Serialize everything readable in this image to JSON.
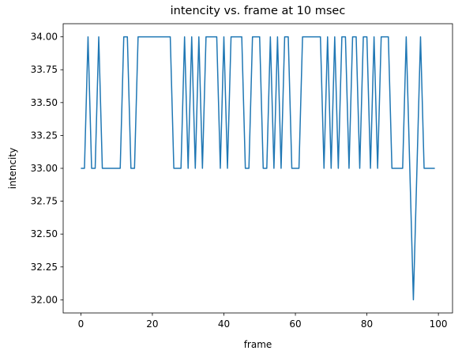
{
  "chart_data": {
    "type": "line",
    "title": "intencity vs. frame at 10 msec",
    "xlabel": "frame",
    "ylabel": "intencity",
    "xlim": [
      -4.95,
      103.95
    ],
    "ylim": [
      31.9,
      34.1
    ],
    "xticks": [
      0,
      20,
      40,
      60,
      80,
      100
    ],
    "yticks": [
      32.0,
      32.25,
      32.5,
      32.75,
      33.0,
      33.25,
      33.5,
      33.75,
      34.0
    ],
    "yticklabels": [
      "32.00",
      "32.25",
      "32.50",
      "32.75",
      "33.00",
      "33.25",
      "33.50",
      "33.75",
      "34.00"
    ],
    "grid": false,
    "series": [
      {
        "color": "#1f77b4",
        "x": [
          0,
          1,
          2,
          3,
          4,
          5,
          6,
          7,
          8,
          9,
          10,
          11,
          12,
          13,
          14,
          15,
          16,
          17,
          18,
          19,
          20,
          21,
          22,
          23,
          24,
          25,
          26,
          27,
          28,
          29,
          30,
          31,
          32,
          33,
          34,
          35,
          36,
          37,
          38,
          39,
          40,
          41,
          42,
          43,
          44,
          45,
          46,
          47,
          48,
          49,
          50,
          51,
          52,
          53,
          54,
          55,
          56,
          57,
          58,
          59,
          60,
          61,
          62,
          63,
          64,
          65,
          66,
          67,
          68,
          69,
          70,
          71,
          72,
          73,
          74,
          75,
          76,
          77,
          78,
          79,
          80,
          81,
          82,
          83,
          84,
          85,
          86,
          87,
          88,
          89,
          90,
          91,
          92,
          93,
          94,
          95,
          96,
          97,
          98,
          99
        ],
        "y": [
          33,
          33,
          34,
          33,
          33,
          34,
          33,
          33,
          33,
          33,
          33,
          33,
          34,
          34,
          33,
          33,
          34,
          34,
          34,
          34,
          34,
          34,
          34,
          34,
          34,
          34,
          33,
          33,
          33,
          34,
          33,
          34,
          33,
          34,
          33,
          34,
          34,
          34,
          34,
          33,
          34,
          33,
          34,
          34,
          34,
          34,
          33,
          33,
          34,
          34,
          34,
          33,
          33,
          34,
          33,
          34,
          33,
          34,
          34,
          33,
          33,
          33,
          34,
          34,
          34,
          34,
          34,
          34,
          33,
          34,
          33,
          34,
          33,
          34,
          34,
          33,
          34,
          34,
          33,
          34,
          34,
          33,
          34,
          33,
          34,
          34,
          34,
          33,
          33,
          33,
          33,
          34,
          33,
          32,
          33,
          34,
          33,
          33,
          33,
          33
        ]
      }
    ]
  }
}
